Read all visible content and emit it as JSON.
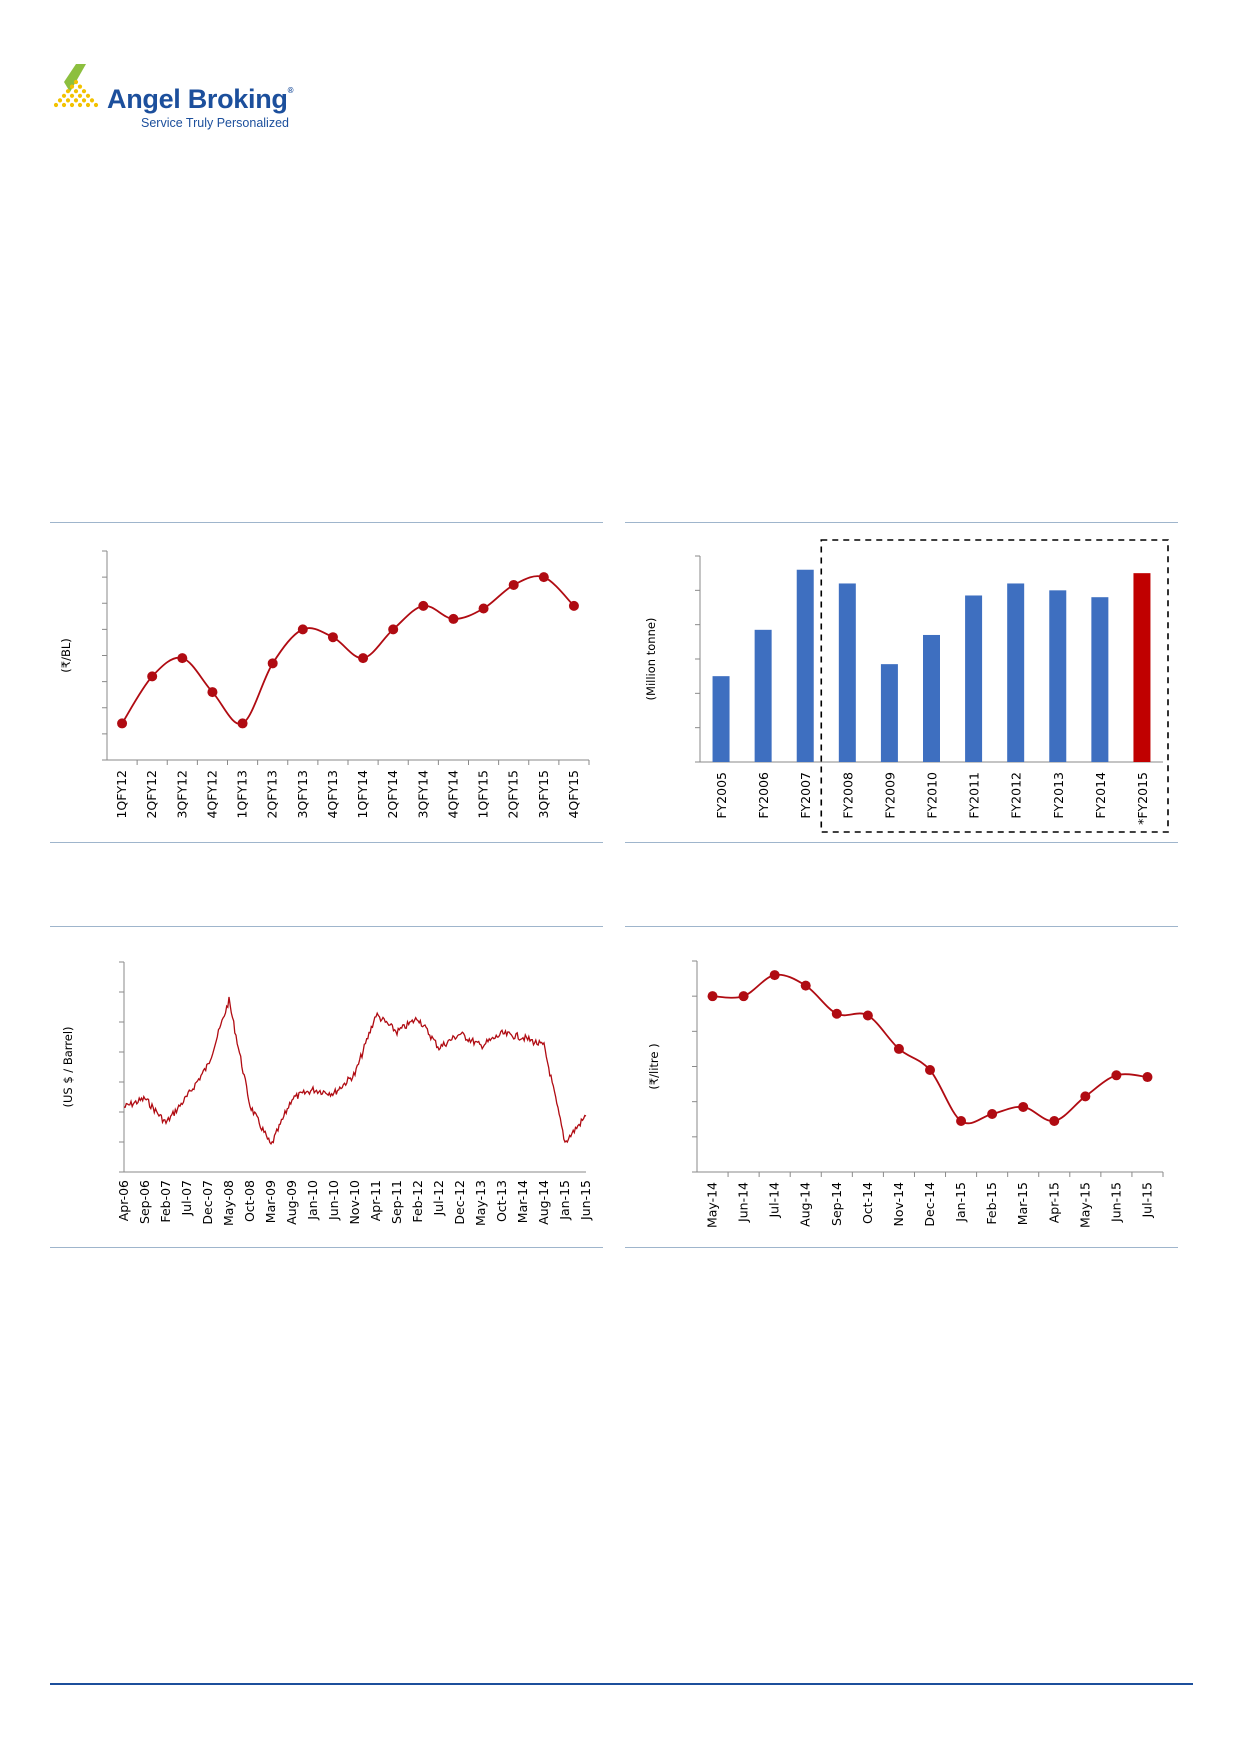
{
  "header": {
    "brand_name": "Angel Broking",
    "brand_mark": "®",
    "tagline": "Service Truly Personalized"
  },
  "colors": {
    "brand_blue": "#1c4f9c",
    "brand_green": "#8cbf3f",
    "brand_yellow": "#f2c200",
    "line_red": "#b00b12",
    "bar_blue": "#3e6fc0",
    "bar_red": "#c00000",
    "rule": "#9fb5cc"
  },
  "chart_data": [
    {
      "type": "line",
      "ylabel": "(₹/BL)",
      "categories": [
        "1QFY12",
        "2QFY12",
        "3QFY12",
        "4QFY12",
        "1QFY13",
        "2QFY13",
        "3QFY13",
        "4QFY13",
        "1QFY14",
        "2QFY14",
        "3QFY14",
        "4QFY14",
        "1QFY15",
        "2QFY15",
        "3QFY15",
        "4QFY15"
      ],
      "values": [
        1.4,
        3.2,
        3.9,
        2.6,
        1.4,
        3.7,
        5.0,
        4.7,
        3.9,
        5.0,
        5.9,
        5.4,
        5.8,
        6.7,
        7.0,
        5.9
      ],
      "ylim": [
        0,
        8
      ],
      "markers": true,
      "smooth": true,
      "grid": false
    },
    {
      "type": "bar",
      "ylabel": "(Million tonne)",
      "categories": [
        "FY2005",
        "FY2006",
        "FY2007",
        "FY2008",
        "FY2009",
        "FY2010",
        "FY2011",
        "FY2012",
        "FY2013",
        "FY2014",
        "*FY2015"
      ],
      "values": [
        2.5,
        3.85,
        5.6,
        5.2,
        2.85,
        3.7,
        4.85,
        5.2,
        5.0,
        4.8,
        5.5
      ],
      "highlight_index": 10,
      "ylim": [
        0,
        6
      ],
      "dashed_box_from": "FY2008",
      "dashed_box_to": "*FY2015",
      "grid": false
    },
    {
      "type": "line",
      "ylabel": "(US $ / Barrel)",
      "categories": [
        "Apr-06",
        "Sep-06",
        "Feb-07",
        "Jul-07",
        "Dec-07",
        "May-08",
        "Oct-08",
        "Mar-09",
        "Aug-09",
        "Jan-10",
        "Jun-10",
        "Nov-10",
        "Apr-11",
        "Sep-11",
        "Feb-12",
        "Jul-12",
        "Dec-12",
        "May-13",
        "Oct-13",
        "Mar-14",
        "Aug-14",
        "Jan-15",
        "Jun-15"
      ],
      "values": [
        67,
        72,
        58,
        73,
        91,
        128,
        68,
        45,
        72,
        77,
        75,
        86,
        120,
        110,
        118,
        101,
        109,
        102,
        109,
        107,
        102,
        47,
        62
      ],
      "ylim": [
        30,
        150
      ],
      "markers": false,
      "grid": false
    },
    {
      "type": "line",
      "ylabel": "(₹/litre )",
      "categories": [
        "May-14",
        "Jun-14",
        "Jul-14",
        "Aug-14",
        "Sep-14",
        "Oct-14",
        "Nov-14",
        "Dec-14",
        "Jan-15",
        "Feb-15",
        "Mar-15",
        "Apr-15",
        "May-15",
        "Jun-15",
        "Jul-15"
      ],
      "values": [
        5.0,
        5.0,
        5.6,
        5.3,
        4.5,
        4.45,
        3.5,
        2.9,
        1.45,
        1.65,
        1.85,
        1.45,
        2.15,
        2.75,
        2.7
      ],
      "ylim": [
        0,
        6
      ],
      "markers": true,
      "smooth": true,
      "grid": false
    }
  ]
}
